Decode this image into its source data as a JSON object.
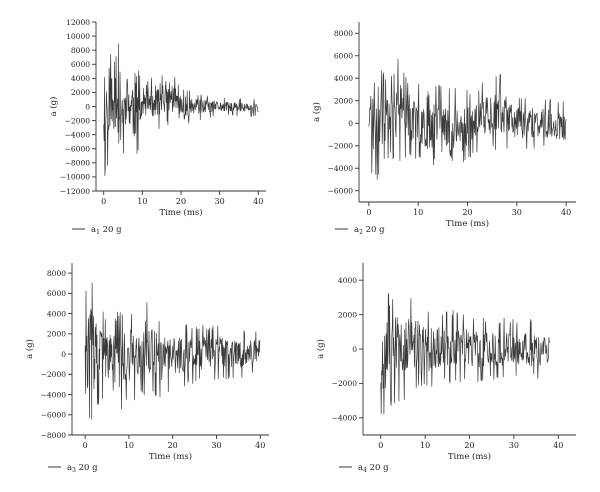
{
  "style": {
    "axis_color": "#333333",
    "trace_color": "#3a3a3a"
  },
  "chart_data": [
    {
      "type": "line",
      "xlabel": "Time (ms)",
      "ylabel": "a (g)",
      "xlim": [
        -2,
        42
      ],
      "ylim": [
        -12000,
        12000
      ],
      "xticks": [
        0,
        10,
        20,
        30,
        40
      ],
      "yticks": [
        -12000,
        -10000,
        -8000,
        -6000,
        -4000,
        -2000,
        0,
        2000,
        4000,
        6000,
        8000,
        10000,
        12000
      ],
      "legend": {
        "base": "a",
        "sub": "1",
        "rest": " 20 g"
      },
      "grid": false,
      "series": [
        {
          "name": "a1 20 g",
          "x_start": 0,
          "x_end": 40,
          "dt": 0.1,
          "seed": 11,
          "envelope": [
            [
              0,
              10500,
              -10500
            ],
            [
              0.6,
              11000,
              -10300
            ],
            [
              1.5,
              10000,
              -7000
            ],
            [
              2.5,
              6000,
              -6000
            ],
            [
              4,
              10000,
              -10200
            ],
            [
              6,
              4500,
              -4500
            ],
            [
              8,
              9500,
              -9300
            ],
            [
              10,
              3000,
              -3000
            ],
            [
              13,
              4800,
              -3500
            ],
            [
              17,
              5800,
              -2500
            ],
            [
              20,
              3000,
              -3500
            ],
            [
              24,
              2000,
              -2000
            ],
            [
              28,
              1500,
              -1500
            ],
            [
              32,
              1200,
              -1200
            ],
            [
              36,
              1200,
              -1500
            ],
            [
              40,
              1000,
              -1500
            ]
          ]
        }
      ]
    },
    {
      "type": "line",
      "xlabel": "Time (ms)",
      "ylabel": "a (g)",
      "xlim": [
        -2,
        42
      ],
      "ylim": [
        -7000,
        9000
      ],
      "xticks": [
        0,
        10,
        20,
        30,
        40
      ],
      "yticks": [
        -6000,
        -4000,
        -2000,
        0,
        2000,
        4000,
        6000,
        8000
      ],
      "legend": {
        "base": "a",
        "sub": "2",
        "rest": " 20 g"
      },
      "grid": false,
      "series": [
        {
          "name": "a2 20 g",
          "x_start": 0,
          "x_end": 40,
          "dt": 0.1,
          "seed": 23,
          "envelope": [
            [
              0,
              2000,
              -2000
            ],
            [
              0.8,
              7500,
              -5500
            ],
            [
              2,
              6000,
              -5000
            ],
            [
              4,
              3500,
              -3000
            ],
            [
              6,
              6000,
              -3500
            ],
            [
              9,
              3500,
              -3000
            ],
            [
              12,
              5000,
              -4500
            ],
            [
              15,
              3000,
              -3000
            ],
            [
              17,
              3200,
              -5500
            ],
            [
              22,
              3200,
              -2500
            ],
            [
              26,
              5000,
              -2500
            ],
            [
              30,
              2500,
              -2500
            ],
            [
              35,
              2300,
              -2200
            ],
            [
              40,
              2000,
              -2500
            ]
          ]
        }
      ]
    },
    {
      "type": "line",
      "xlabel": "Time (ms)",
      "ylabel": "a (g)",
      "xlim": [
        -3,
        42
      ],
      "ylim": [
        -8000,
        9000
      ],
      "xticks": [
        0,
        10,
        20,
        30,
        40
      ],
      "yticks": [
        -8000,
        -6000,
        -4000,
        -2000,
        0,
        2000,
        4000,
        6000,
        8000
      ],
      "legend": {
        "base": "a",
        "sub": "3",
        "rest": " 20 g"
      },
      "grid": false,
      "series": [
        {
          "name": "a3 20 g",
          "x_start": 0,
          "x_end": 40,
          "dt": 0.1,
          "seed": 37,
          "envelope": [
            [
              0,
              7000,
              -7500
            ],
            [
              1,
              8300,
              -7200
            ],
            [
              3,
              5000,
              -5500
            ],
            [
              6,
              3500,
              -4000
            ],
            [
              8,
              4500,
              -6000
            ],
            [
              10,
              4500,
              -5000
            ],
            [
              14,
              5500,
              -4000
            ],
            [
              17,
              3500,
              -4500
            ],
            [
              20,
              3200,
              -3500
            ],
            [
              25,
              3000,
              -3000
            ],
            [
              30,
              3000,
              -2500
            ],
            [
              36,
              2500,
              -2500
            ],
            [
              39.5,
              2500,
              -1500
            ]
          ]
        }
      ]
    },
    {
      "type": "line",
      "xlabel": "Time (ms)",
      "ylabel": "a (g)",
      "xlim": [
        -4,
        44
      ],
      "ylim": [
        -5000,
        5000
      ],
      "xticks": [
        0,
        10,
        20,
        30,
        40
      ],
      "yticks": [
        -4000,
        -2000,
        0,
        2000,
        4000
      ],
      "legend": {
        "base": "a",
        "sub": "4",
        "rest": " 20 g"
      },
      "grid": false,
      "series": [
        {
          "name": "a4 20 g",
          "x_start": 0,
          "x_end": 38,
          "dt": 0.1,
          "seed": 53,
          "envelope": [
            [
              0,
              3500,
              -4000
            ],
            [
              1,
              4800,
              -4700
            ],
            [
              2,
              3000,
              -3500
            ],
            [
              4,
              3800,
              -3200
            ],
            [
              8,
              3000,
              -2500
            ],
            [
              10,
              2500,
              -2500
            ],
            [
              14,
              2300,
              -2000
            ],
            [
              18,
              2200,
              -2000
            ],
            [
              22,
              2000,
              -2000
            ],
            [
              26,
              1800,
              -1800
            ],
            [
              30,
              1800,
              -1800
            ],
            [
              35,
              1700,
              -1800
            ],
            [
              38,
              1500,
              -1500
            ]
          ]
        }
      ]
    }
  ]
}
